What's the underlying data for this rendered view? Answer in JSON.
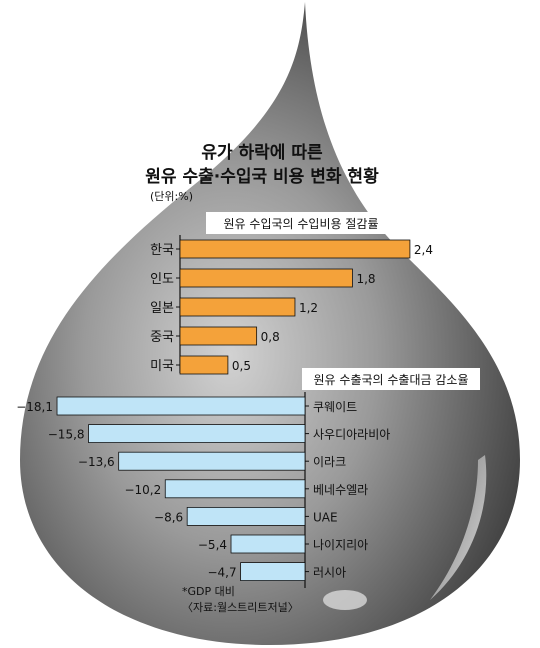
{
  "title_line1": "유가 하락에 따른",
  "title_line2": "원유 수출·수입국 비용 변화 현황",
  "unit": "(단위:%)",
  "colors": {
    "drop_dark": "#3c3c3c",
    "drop_mid": "#8a8a8a",
    "drop_light": "#c8c8c8",
    "orange": "#f4a23a",
    "light_blue": "#bfe4f7",
    "label_box": "#ffffff"
  },
  "chart_data": [
    {
      "type": "bar",
      "orientation": "horizontal",
      "title": "원유 수입국의 수입비용 절감률",
      "categories": [
        "한국",
        "인도",
        "일본",
        "중국",
        "미국"
      ],
      "values": [
        2.4,
        1.8,
        1.2,
        0.8,
        0.5
      ],
      "value_labels": [
        "2,4",
        "1,8",
        "1,2",
        "0,8",
        "0,5"
      ],
      "color": "#f4a23a"
    },
    {
      "type": "bar",
      "orientation": "horizontal",
      "title": "원유 수출국의 수출대금 감소율",
      "categories": [
        "쿠웨이트",
        "사우디아라비아",
        "이라크",
        "베네수엘라",
        "UAE",
        "나이지리아",
        "러시아"
      ],
      "values": [
        -18.1,
        -15.8,
        -13.6,
        -10.2,
        -8.6,
        -5.4,
        -4.7
      ],
      "value_labels": [
        "−18,1",
        "−15,8",
        "−13,6",
        "−10,2",
        "−8,6",
        "−5,4",
        "−4,7"
      ],
      "color": "#bfe4f7"
    }
  ],
  "footnote_1": "*GDP 대비",
  "footnote_2": "〈자료:월스트리트저널〉"
}
